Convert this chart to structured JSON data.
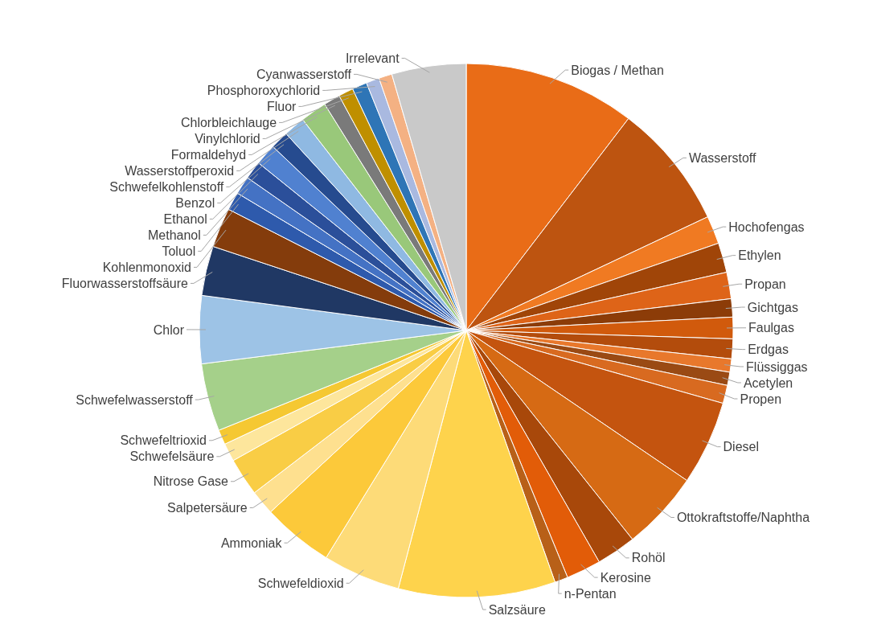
{
  "chart_data": {
    "type": "pie",
    "categories": [
      "Biogas / Methan",
      "Wasserstoff",
      "Hochofengas",
      "Ethylen",
      "Propan",
      "Gichtgas",
      "Faulgas",
      "Erdgas",
      "Flüssiggas",
      "Acetylen",
      "Propen",
      "Diesel",
      "Ottokraftstoffe/Naphtha",
      "Rohöl",
      "Kerosine",
      "n-Pentan",
      "Salzsäure",
      "Schwefeldioxid",
      "Ammoniak",
      "Salpetersäure",
      "Nitrose Gase",
      "Schwefelsäure",
      "Schwefeltrioxid",
      "Schwefelwasserstoff",
      "Chlor",
      "Fluorwasserstoffsäure",
      "Kohlenmonoxid",
      "Toluol",
      "Methanol",
      "Ethanol",
      "Benzol",
      "Schwefelkohlenstoff",
      "Wasserstoffperoxid",
      "Formaldehyd",
      "Vinylchlorid",
      "Chlorbleichlauge",
      "Fluor",
      "Phosphoroxychlorid",
      "Cyanwasserstoff",
      "Irrelevant"
    ],
    "values": [
      10.4,
      7.6,
      1.7,
      1.8,
      1.6,
      1.1,
      1.3,
      1.2,
      0.8,
      0.8,
      1.1,
      5.1,
      4.8,
      2.4,
      2.1,
      0.8,
      9.5,
      4.7,
      4.3,
      1.5,
      2.3,
      1.1,
      0.9,
      4.1,
      4.1,
      3.0,
      2.4,
      1.1,
      1.1,
      1.1,
      1.3,
      1.1,
      1.3,
      1.6,
      1.0,
      0.9,
      0.9,
      0.8,
      0.8,
      4.5
    ],
    "colors": [
      "#e96c17",
      "#bd5410",
      "#f07a22",
      "#a04508",
      "#de6418",
      "#8c3c08",
      "#d15a0c",
      "#b34c0c",
      "#e8782c",
      "#9a4a14",
      "#d86a20",
      "#c4540f",
      "#d66a14",
      "#a8480a",
      "#e25c08",
      "#b86018",
      "#fed34c",
      "#fddb78",
      "#fcc93a",
      "#fee08f",
      "#f9cd45",
      "#fde69c",
      "#f5c832",
      "#a5d08a",
      "#9dc3e6",
      "#203864",
      "#843c0c",
      "#2e5aac",
      "#4472c4",
      "#2b4f9a",
      "#5081d0",
      "#264b8f",
      "#8fb9e2",
      "#99c87a",
      "#7a7a7a",
      "#bf8f00",
      "#2e75b6",
      "#a9b9e0",
      "#f4b183",
      "#c9c9c9"
    ]
  }
}
